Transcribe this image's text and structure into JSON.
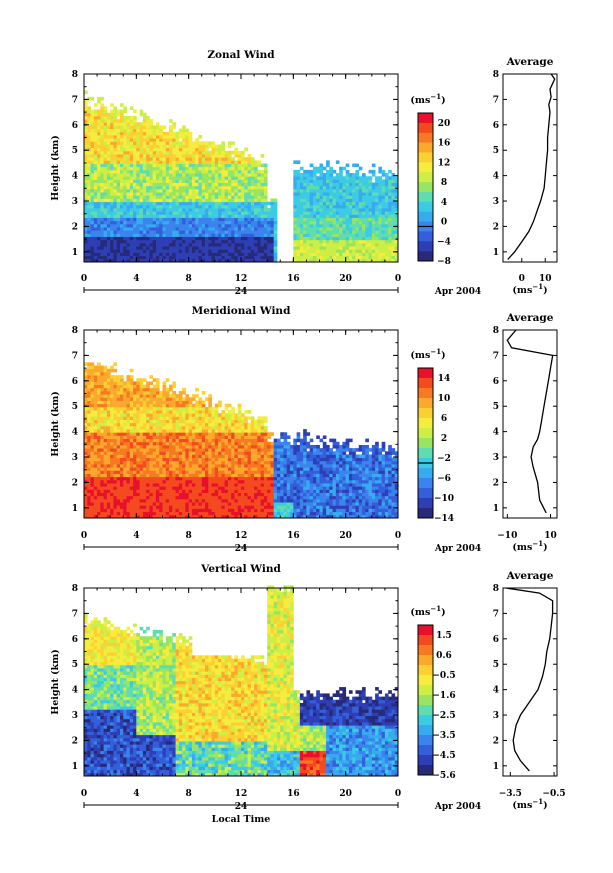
{
  "chart_data": [
    {
      "type": "heatmap",
      "title": "Zonal Wind",
      "ylabel": "Height (km)",
      "x_ticks": [
        "0",
        "4",
        "8",
        "12",
        "16",
        "20",
        "0"
      ],
      "y_ticks": [
        "1",
        "2",
        "3",
        "4",
        "5",
        "6",
        "7",
        "8"
      ],
      "xlim": [
        0,
        24
      ],
      "ylim": [
        0.6,
        8
      ],
      "day_label": "24",
      "date_label": "Apr 2004",
      "colorbar": {
        "unit": "(ms",
        "unit_exp": "−1",
        "unit_close": ")",
        "ticks": [
          "20",
          "16",
          "12",
          "8",
          "4",
          "0",
          "−4",
          "−8"
        ],
        "zero_index": 5
      },
      "scheme": "zonal",
      "average": {
        "title": "Average",
        "xlim": [
          -8,
          15
        ],
        "x_ticks": [
          "0",
          "10"
        ],
        "xlabel": "(ms",
        "xlabel_exp": "−1",
        "xlabel_close": ")",
        "y_ticks": [
          "1",
          "2",
          "3",
          "4",
          "5",
          "6",
          "7",
          "8"
        ],
        "profile": [
          [
            -6,
            0.7
          ],
          [
            -3,
            1.0
          ],
          [
            0,
            1.4
          ],
          [
            3,
            1.8
          ],
          [
            5,
            2.2
          ],
          [
            6.5,
            2.6
          ],
          [
            8,
            3.0
          ],
          [
            9.5,
            3.5
          ],
          [
            10,
            4.0
          ],
          [
            10.5,
            4.5
          ],
          [
            11,
            5.0
          ],
          [
            11,
            5.5
          ],
          [
            11.5,
            6.0
          ],
          [
            12,
            6.5
          ],
          [
            11.5,
            6.8
          ],
          [
            12.5,
            7.1
          ],
          [
            12,
            7.4
          ],
          [
            13,
            7.6
          ],
          [
            14,
            7.8
          ],
          [
            12.5,
            8.0
          ]
        ]
      }
    },
    {
      "type": "heatmap",
      "title": "Meridional Wind",
      "ylabel": "Height (km)",
      "x_ticks": [
        "0",
        "4",
        "8",
        "12",
        "16",
        "20",
        "0"
      ],
      "y_ticks": [
        "1",
        "2",
        "3",
        "4",
        "5",
        "6",
        "7",
        "8"
      ],
      "xlim": [
        0,
        24
      ],
      "ylim": [
        0.6,
        8
      ],
      "day_label": "24",
      "date_label": "Apr 2004",
      "colorbar": {
        "unit": "(ms",
        "unit_exp": "−1",
        "unit_close": ")",
        "ticks": [
          "14",
          "10",
          "6",
          "2",
          "−2",
          "−6",
          "−10",
          "−14"
        ],
        "zero_index": 4
      },
      "scheme": "meridional",
      "average": {
        "title": "Average",
        "xlim": [
          -12,
          13
        ],
        "x_ticks": [
          "−10",
          "10"
        ],
        "xlabel": "(ms",
        "xlabel_exp": "−1",
        "xlabel_close": ")",
        "y_ticks": [
          "1",
          "2",
          "3",
          "4",
          "5",
          "6",
          "7",
          "8"
        ],
        "profile": [
          [
            8,
            0.8
          ],
          [
            5,
            1.3
          ],
          [
            4,
            2.0
          ],
          [
            2,
            2.6
          ],
          [
            1,
            3.0
          ],
          [
            2,
            3.4
          ],
          [
            4,
            3.7
          ],
          [
            5,
            4.0
          ],
          [
            6,
            4.5
          ],
          [
            7,
            5.0
          ],
          [
            8,
            5.5
          ],
          [
            9,
            6.0
          ],
          [
            10,
            6.5
          ],
          [
            11,
            7.0
          ],
          [
            -8,
            7.3
          ],
          [
            -10,
            7.6
          ],
          [
            -6,
            8.0
          ]
        ]
      }
    },
    {
      "type": "heatmap",
      "title": "Vertical Wind",
      "ylabel": "Height (km)",
      "xlabel": "Local Time",
      "x_ticks": [
        "0",
        "4",
        "8",
        "12",
        "16",
        "20",
        "0"
      ],
      "y_ticks": [
        "1",
        "2",
        "3",
        "4",
        "5",
        "6",
        "7",
        "8"
      ],
      "xlim": [
        0,
        24
      ],
      "ylim": [
        0.6,
        8
      ],
      "day_label": "24",
      "date_label": "Apr 2004",
      "colorbar": {
        "unit": "(ms",
        "unit_exp": "−1",
        "unit_close": ")",
        "ticks": [
          "1.5",
          "0.6",
          "−0.5",
          "−1.6",
          "−2.5",
          "−3.5",
          "−4.5",
          "−5.6"
        ],
        "zero_index": -1
      },
      "scheme": "vertical",
      "average": {
        "title": "Average",
        "xlim": [
          -4.0,
          -0.3
        ],
        "x_ticks": [
          "−3.5",
          "−0.5"
        ],
        "xlabel": "(ms",
        "xlabel_exp": "−1",
        "xlabel_close": ")",
        "y_ticks": [
          "1",
          "2",
          "3",
          "4",
          "5",
          "6",
          "7",
          "8"
        ],
        "profile": [
          [
            -2.2,
            0.8
          ],
          [
            -2.8,
            1.2
          ],
          [
            -3.2,
            1.6
          ],
          [
            -3.3,
            2.0
          ],
          [
            -3.1,
            2.6
          ],
          [
            -2.8,
            3.0
          ],
          [
            -2.2,
            3.5
          ],
          [
            -1.6,
            4.0
          ],
          [
            -1.3,
            4.5
          ],
          [
            -1.1,
            5.0
          ],
          [
            -1.0,
            5.5
          ],
          [
            -0.8,
            6.0
          ],
          [
            -0.7,
            6.5
          ],
          [
            -0.6,
            7.0
          ],
          [
            -0.6,
            7.5
          ],
          [
            -1.5,
            7.8
          ],
          [
            -3.8,
            8.0
          ]
        ]
      }
    }
  ]
}
